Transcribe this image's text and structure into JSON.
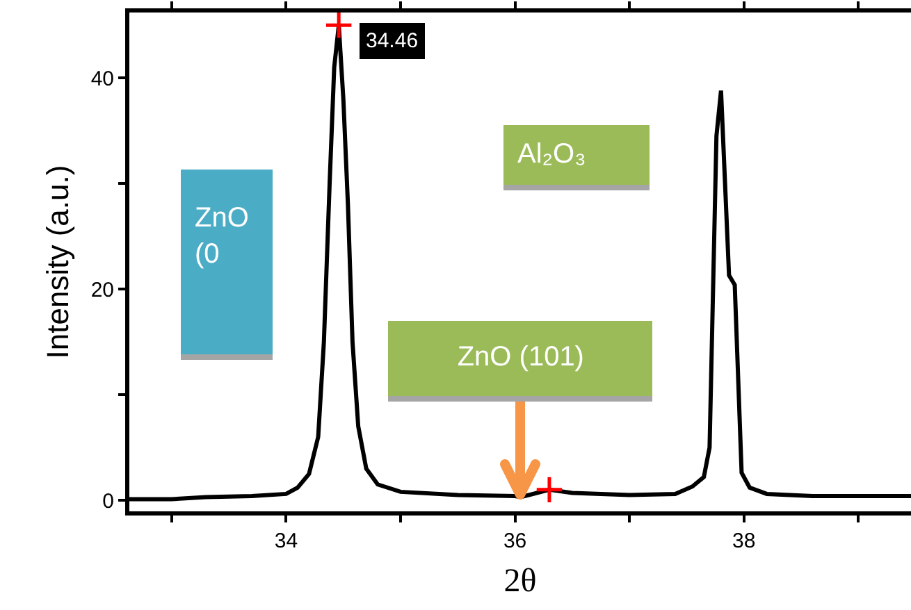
{
  "chart_data": {
    "type": "line",
    "xlabel": "2θ",
    "ylabel": "Intensity (a.u.)",
    "xlim": [
      32.63,
      39.46
    ],
    "ylim": [
      -1.05,
      46.2
    ],
    "xticks": [
      {
        "value": 33,
        "label": null
      },
      34,
      {
        "value": 35,
        "label": null
      },
      36,
      {
        "value": 37,
        "label": null
      },
      38,
      {
        "value": 39,
        "label": null
      }
    ],
    "yticks": [
      0,
      {
        "value": 10,
        "label": null
      },
      20,
      {
        "value": 30,
        "label": null
      },
      40
    ],
    "grid": false,
    "line_style": "solid",
    "marker": "none",
    "series": [
      {
        "color": "#000000",
        "x": [
          32.63,
          33.0,
          33.3,
          33.7,
          34.0,
          34.1,
          34.2,
          34.28,
          34.33,
          34.38,
          34.42,
          34.46,
          34.5,
          34.54,
          34.58,
          34.63,
          34.7,
          34.8,
          35.0,
          35.5,
          36.0,
          36.05,
          36.3,
          36.5,
          37.0,
          37.4,
          37.55,
          37.65,
          37.7,
          37.76,
          37.8,
          37.87,
          37.92,
          37.98,
          38.05,
          38.2,
          38.6,
          39.0,
          39.46
        ],
        "values": [
          0.1,
          0.1,
          0.3,
          0.4,
          0.6,
          1.2,
          2.5,
          6,
          15,
          30,
          41,
          45,
          38,
          28,
          15,
          7,
          3,
          1.5,
          0.8,
          0.5,
          0.4,
          0.3,
          1.0,
          0.7,
          0.5,
          0.6,
          1.3,
          2.2,
          5,
          34.5,
          38.8,
          21.3,
          20.4,
          2.6,
          1.2,
          0.6,
          0.4,
          0.4,
          0.4
        ]
      },
      {
        "type": "scatter",
        "marker": "cross",
        "color": "#ff0000",
        "x": [
          34.46,
          36.3
        ],
        "values": [
          45,
          1.0
        ]
      }
    ],
    "annotations": [
      {
        "text": "34.46",
        "x": 34.46,
        "y": 45
      },
      {
        "text": "ZnO (101)",
        "x": 36.05,
        "y": 0.3
      },
      "ZnO (0",
      "Al₂O₃"
    ]
  }
}
